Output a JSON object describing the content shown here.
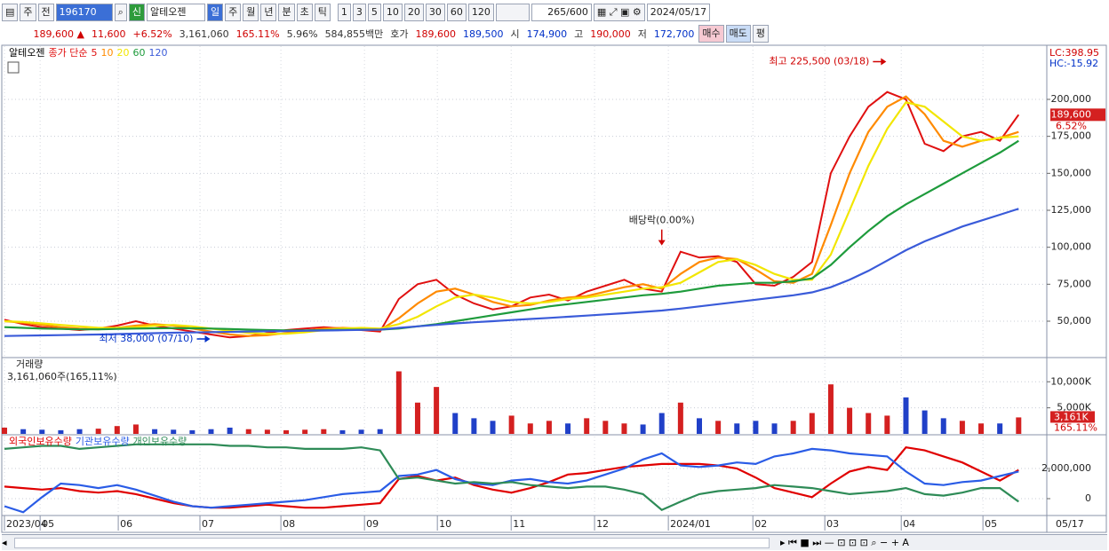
{
  "toolbar": {
    "market": "주",
    "prev": "전",
    "code": "196170",
    "badge": "신",
    "name": "알테오젠",
    "periods": [
      "일",
      "주",
      "월",
      "년",
      "분",
      "초",
      "틱"
    ],
    "spans": [
      "1",
      "3",
      "5",
      "10",
      "20",
      "30",
      "60",
      "120"
    ],
    "count": "265",
    "max": "/600",
    "date": "2024/05/17"
  },
  "quote_bar": {
    "price": "189,600 ▲",
    "change": "11,600",
    "rate": "+6.52%",
    "volume": "3,161,060",
    "volume_rate": "165.11%",
    "turnover": "5.96%",
    "amount": "584,855백만",
    "bid_label": "호가",
    "ask": "189,600",
    "bid": "189,500",
    "open_label": "시",
    "open": "174,900",
    "high_label": "고",
    "high": "190,000",
    "low_label": "저",
    "low": "172,700",
    "buy": "매수",
    "sell": "매도",
    "eval": "평"
  },
  "chart_data": [
    {
      "type": "line",
      "stock_name": "알테오젠",
      "legend_prefix": "종가 단순",
      "lc_label": "LC:398.95",
      "hc_label": "HC:-15.92",
      "current_label": "189,600",
      "change_label": "6.52%",
      "x": [
        0,
        1,
        2,
        3,
        4,
        5,
        6,
        7,
        8,
        9,
        10,
        11,
        12,
        13,
        14,
        15,
        16,
        17,
        18,
        19,
        20,
        21,
        22,
        23,
        24,
        25,
        26,
        27,
        28,
        29,
        30,
        31,
        32,
        33,
        34,
        35,
        36,
        37,
        38,
        39,
        40,
        41,
        42,
        43,
        44,
        45,
        46,
        47,
        48,
        49,
        50,
        51,
        52,
        53,
        54
      ],
      "xlim": [
        0,
        55.5
      ],
      "ylim": [
        26000,
        236000
      ],
      "yticks": [
        {
          "value": 50000,
          "label": "50,000"
        },
        {
          "value": 75000,
          "label": "75,000"
        },
        {
          "value": 100000,
          "label": "100,000"
        },
        {
          "value": 125000,
          "label": "125,000"
        },
        {
          "value": 150000,
          "label": "150,000"
        },
        {
          "value": 175000,
          "label": "175,000"
        },
        {
          "value": 200000,
          "label": "200,000"
        }
      ],
      "grid": true,
      "series": [
        {
          "name": "5",
          "color": "#e01010",
          "values": [
            51000,
            48000,
            46000,
            45000,
            44000,
            45000,
            47000,
            50000,
            47000,
            45000,
            43000,
            41000,
            39000,
            40000,
            42000,
            44000,
            45000,
            46000,
            45000,
            44000,
            43000,
            65000,
            75000,
            78000,
            68000,
            62000,
            58000,
            60000,
            66000,
            68000,
            64000,
            70000,
            74000,
            78000,
            72000,
            70000,
            97000,
            93000,
            94000,
            90000,
            75000,
            74000,
            80000,
            90000,
            150000,
            175000,
            195000,
            205000,
            200000,
            170000,
            165000,
            175000,
            178000,
            172000,
            189600
          ]
        },
        {
          "name": "10",
          "color": "#ff8a00",
          "values": [
            50000,
            49000,
            47500,
            46000,
            45000,
            44500,
            45500,
            47000,
            48000,
            47000,
            45000,
            43000,
            41000,
            40000,
            40500,
            42000,
            43500,
            45000,
            45500,
            45000,
            44000,
            52000,
            62000,
            70000,
            72000,
            68000,
            63000,
            60000,
            61000,
            64000,
            66000,
            67000,
            70000,
            73000,
            75000,
            72000,
            82000,
            90000,
            93000,
            92000,
            85000,
            77000,
            76000,
            82000,
            115000,
            150000,
            178000,
            195000,
            202000,
            190000,
            172000,
            168000,
            172000,
            174000,
            178000
          ]
        },
        {
          "name": "20",
          "color": "#f2e600",
          "values": [
            50000,
            49500,
            48500,
            47500,
            46500,
            45500,
            45500,
            46000,
            47000,
            47500,
            46500,
            45000,
            43500,
            42000,
            41500,
            41500,
            42500,
            44000,
            45000,
            45500,
            45000,
            48000,
            53000,
            60000,
            66000,
            68000,
            66000,
            63000,
            62000,
            63000,
            65000,
            66000,
            68000,
            70000,
            72000,
            73000,
            76000,
            83000,
            90000,
            92000,
            88000,
            82000,
            78000,
            78000,
            95000,
            125000,
            155000,
            180000,
            198000,
            195000,
            185000,
            175000,
            172000,
            174000,
            175000
          ]
        },
        {
          "name": "60",
          "color": "#1e9b3c",
          "values": [
            46000,
            45500,
            45000,
            44800,
            44500,
            44500,
            44800,
            45000,
            45200,
            45300,
            45200,
            45000,
            44700,
            44300,
            44000,
            43800,
            43800,
            44000,
            44200,
            44300,
            44300,
            45000,
            46500,
            48000,
            50000,
            52000,
            54000,
            56000,
            58000,
            60000,
            61500,
            63000,
            64500,
            66000,
            67500,
            68500,
            70000,
            72000,
            74000,
            75000,
            76000,
            76000,
            77000,
            79000,
            88000,
            100000,
            111000,
            121000,
            129000,
            136000,
            143000,
            150000,
            157000,
            164000,
            172000
          ]
        },
        {
          "name": "120",
          "color": "#3a5bd9",
          "values": [
            40000,
            40200,
            40400,
            40600,
            40800,
            41000,
            41300,
            41600,
            41900,
            42200,
            42400,
            42600,
            42800,
            43000,
            43200,
            43300,
            43500,
            43700,
            43900,
            44100,
            44300,
            45500,
            46500,
            47500,
            48500,
            49300,
            50000,
            50800,
            51500,
            52200,
            53000,
            53800,
            54600,
            55400,
            56300,
            57200,
            58500,
            60000,
            61500,
            63000,
            64500,
            66000,
            67500,
            69500,
            73000,
            78000,
            84000,
            91000,
            98000,
            104000,
            109000,
            114000,
            118000,
            122000,
            126000
          ]
        }
      ],
      "annotations": [
        {
          "text": "최고 225,500 (03/18)",
          "x": 47,
          "y": 225500
        },
        {
          "text": "최저 38,000 (07/10)",
          "x": 11,
          "y": 38000
        },
        {
          "text": "배당락(0.00%)",
          "x": 35,
          "y": 100000
        }
      ]
    },
    {
      "type": "bar",
      "title": "거래량",
      "info": "3,161,060주(165,11%)",
      "current_label": "3,161K",
      "rate_label": "165.11%",
      "up_color": "#d42020",
      "down_color": "#2040c8",
      "x": [
        0,
        1,
        2,
        3,
        4,
        5,
        6,
        7,
        8,
        9,
        10,
        11,
        12,
        13,
        14,
        15,
        16,
        17,
        18,
        19,
        20,
        21,
        22,
        23,
        24,
        25,
        26,
        27,
        28,
        29,
        30,
        31,
        32,
        33,
        34,
        35,
        36,
        37,
        38,
        39,
        40,
        41,
        42,
        43,
        44,
        45,
        46,
        47,
        48,
        49,
        50,
        51,
        52,
        53,
        54
      ],
      "xlim": [
        0,
        55.5
      ],
      "ylim": [
        0,
        14300000
      ],
      "yticks": [
        {
          "value": 5000000,
          "label": "5,000K"
        },
        {
          "value": 10000000,
          "label": "10,000K"
        }
      ],
      "grid": true,
      "values": [
        1200000,
        900000,
        800000,
        700000,
        900000,
        1000000,
        1500000,
        1800000,
        900000,
        800000,
        700000,
        900000,
        1200000,
        900000,
        800000,
        700000,
        800000,
        900000,
        700000,
        800000,
        900000,
        12000000,
        6000000,
        9000000,
        4000000,
        3000000,
        2500000,
        3500000,
        2000000,
        2500000,
        2000000,
        3000000,
        2500000,
        2000000,
        1800000,
        4000000,
        6000000,
        3000000,
        2500000,
        2000000,
        2500000,
        2000000,
        2500000,
        4000000,
        9500000,
        5000000,
        4000000,
        3500000,
        7000000,
        4500000,
        3000000,
        2500000,
        2000000,
        2000000,
        3161060
      ]
    },
    {
      "type": "line",
      "x": [
        0,
        1,
        2,
        3,
        4,
        5,
        6,
        7,
        8,
        9,
        10,
        11,
        12,
        13,
        14,
        15,
        16,
        17,
        18,
        19,
        20,
        21,
        22,
        23,
        24,
        25,
        26,
        27,
        28,
        29,
        30,
        31,
        32,
        33,
        34,
        35,
        36,
        37,
        38,
        39,
        40,
        41,
        42,
        43,
        44,
        45,
        46,
        47,
        48,
        49,
        50,
        51,
        52,
        53,
        54
      ],
      "xlim": [
        0,
        55.5
      ],
      "ylim": [
        -1060000,
        4120000
      ],
      "yticks": [
        0,
        {
          "value": 2000000,
          "label": "2,000,000"
        }
      ],
      "grid": true,
      "xticks": [
        {
          "value": 0,
          "label": "2023/04"
        },
        {
          "value": 1.9,
          "label": "05"
        },
        {
          "value": 6.06,
          "label": "06"
        },
        {
          "value": 10.41,
          "label": "07"
        },
        {
          "value": 14.72,
          "label": "08"
        },
        {
          "value": 19.17,
          "label": "09"
        },
        {
          "value": 23.05,
          "label": "10"
        },
        {
          "value": 26.98,
          "label": "11"
        },
        {
          "value": 31.42,
          "label": "12"
        },
        {
          "value": 35.35,
          "label": "2024/01"
        },
        {
          "value": 39.85,
          "label": "02"
        },
        {
          "value": 43.68,
          "label": "03"
        },
        {
          "value": 47.75,
          "label": "04"
        },
        {
          "value": 52.1,
          "label": "05"
        }
      ],
      "end_label": "05/17",
      "series": [
        {
          "name": "외국인보유수량",
          "color": "#e00000",
          "values": [
            800000,
            700000,
            600000,
            700000,
            500000,
            400000,
            500000,
            300000,
            0,
            -300000,
            -500000,
            -600000,
            -600000,
            -500000,
            -400000,
            -500000,
            -600000,
            -600000,
            -500000,
            -400000,
            -300000,
            1300000,
            1500000,
            1200000,
            1400000,
            900000,
            600000,
            400000,
            700000,
            1100000,
            1600000,
            1700000,
            1900000,
            2100000,
            2200000,
            2300000,
            2300000,
            2300000,
            2200000,
            2000000,
            1400000,
            700000,
            400000,
            100000,
            1000000,
            1800000,
            2100000,
            1900000,
            3400000,
            3200000,
            2800000,
            2400000,
            1800000,
            1200000,
            1900000
          ]
        },
        {
          "name": "기관보유수량",
          "color": "#2a5ce6",
          "values": [
            -500000,
            -900000,
            100000,
            1000000,
            900000,
            700000,
            900000,
            600000,
            200000,
            -200000,
            -500000,
            -600000,
            -500000,
            -400000,
            -300000,
            -200000,
            -100000,
            100000,
            300000,
            400000,
            500000,
            1500000,
            1600000,
            1900000,
            1300000,
            1000000,
            900000,
            1200000,
            1300000,
            1100000,
            1000000,
            1200000,
            1600000,
            2000000,
            2600000,
            3000000,
            2200000,
            2100000,
            2200000,
            2400000,
            2300000,
            2800000,
            3000000,
            3300000,
            3200000,
            3000000,
            2900000,
            2800000,
            1800000,
            1000000,
            900000,
            1100000,
            1200000,
            1500000,
            1800000
          ]
        },
        {
          "name": "개인보유수량",
          "color": "#2e8b57",
          "values": [
            3300000,
            3400000,
            3500000,
            3500000,
            3300000,
            3400000,
            3500000,
            3600000,
            3600000,
            3600000,
            3600000,
            3600000,
            3500000,
            3500000,
            3400000,
            3400000,
            3300000,
            3300000,
            3300000,
            3400000,
            3200000,
            1300000,
            1400000,
            1200000,
            1000000,
            1100000,
            1000000,
            1100000,
            900000,
            800000,
            700000,
            800000,
            800000,
            600000,
            300000,
            -750000,
            -200000,
            300000,
            500000,
            600000,
            700000,
            900000,
            800000,
            700000,
            500000,
            300000,
            400000,
            500000,
            700000,
            300000,
            200000,
            400000,
            700000,
            700000,
            -200000
          ]
        }
      ]
    }
  ]
}
